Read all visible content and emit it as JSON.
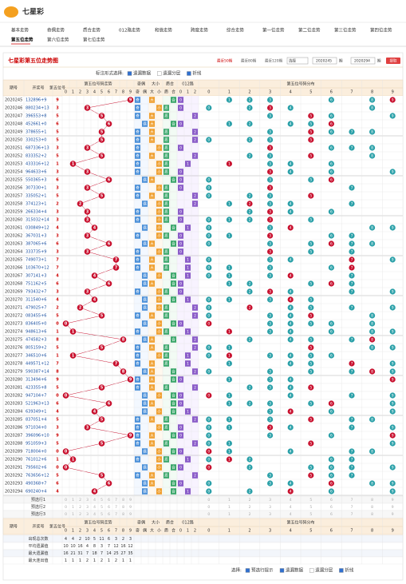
{
  "header": {
    "logo": "七星彩",
    "nav": [
      "基本走势",
      "奇偶走势",
      "质合走势",
      "012路走势",
      "和值走势",
      "跨度走势",
      "综合走势",
      "第一位走势",
      "第二位走势",
      "第三位走势",
      "第四位走势",
      "第五位走势",
      "第六位走势",
      "第七位走势"
    ],
    "active": 11
  },
  "title": "七星彩第五位走势图",
  "controls": {
    "recent": [
      "最近50期",
      "最近80期",
      "最近120期"
    ],
    "select": "选择",
    "from": "2020245",
    "qi": "期",
    "to": "2020294",
    "submit": "提取"
  },
  "options": {
    "label": "标注形式选择:",
    "items": [
      {
        "text": "遗漏数据",
        "checked": true
      },
      {
        "text": "遗漏分层",
        "checked": false
      },
      {
        "text": "折线",
        "checked": true
      }
    ]
  },
  "table": {
    "columns": {
      "period": "期号",
      "number": "开奖号",
      "digit": "第五位号",
      "trend": "第五位号码走势",
      "digits": [
        "0",
        "1",
        "2",
        "3",
        "4",
        "5",
        "6",
        "7",
        "8",
        "9"
      ],
      "parity": {
        "title": "奇偶",
        "labels": [
          "奇",
          "偶"
        ]
      },
      "size": {
        "title": "大小",
        "labels": [
          "大",
          "小"
        ]
      },
      "prime": {
        "title": "质合",
        "labels": [
          "质",
          "合"
        ]
      },
      "route": {
        "title": "012路",
        "labels": [
          "0",
          "1",
          "2"
        ]
      },
      "dist": "第五位号码分布"
    },
    "rows": [
      [
        "2020245",
        "132896+9",
        9
      ],
      [
        "2020246",
        "880234+13",
        3
      ],
      [
        "2020247",
        "396553+8",
        5
      ],
      [
        "2020248",
        "452661+0",
        6
      ],
      [
        "2020249",
        "378655+1",
        5
      ],
      [
        "2020250",
        "330253+0",
        5
      ],
      [
        "2020251",
        "687336+13",
        3
      ],
      [
        "2020252",
        "833352+2",
        5
      ],
      [
        "2020253",
        "433316+12",
        1
      ],
      [
        "2020254",
        "964633+6",
        3
      ],
      [
        "2020255",
        "550365+3",
        6
      ],
      [
        "2020256",
        "307330+1",
        3
      ],
      [
        "2020257",
        "335052+1",
        5
      ],
      [
        "2020258",
        "374123+1",
        2
      ],
      [
        "2020259",
        "266334+4",
        3
      ],
      [
        "2020260",
        "315032+14",
        3
      ],
      [
        "2020261",
        "030849+12",
        4
      ],
      [
        "2020262",
        "367031+3",
        3
      ],
      [
        "2020263",
        "387065+6",
        6
      ],
      [
        "2020264",
        "333735+9",
        3
      ],
      [
        "2020265",
        "749073+1",
        7
      ],
      [
        "2020266",
        "103670+12",
        7
      ],
      [
        "2020267",
        "307141+3",
        4
      ],
      [
        "2020268",
        "751162+5",
        6
      ],
      [
        "2020269",
        "793432+7",
        3
      ],
      [
        "2020270",
        "311540+6",
        4
      ],
      [
        "2020271",
        "479025+7",
        2
      ],
      [
        "2020272",
        "083455+6",
        5
      ],
      [
        "2020273",
        "836405+0",
        0
      ],
      [
        "2020274",
        "948613+6",
        1
      ],
      [
        "2020275",
        "474582+3",
        8
      ],
      [
        "2020276",
        "805159+2",
        5
      ],
      [
        "2020277",
        "346510+6",
        1
      ],
      [
        "2020278",
        "449571+12",
        7
      ],
      [
        "2020279",
        "590387+14",
        8
      ],
      [
        "2020280",
        "313494+6",
        9
      ],
      [
        "2020281",
        "423355+8",
        5
      ],
      [
        "2020282",
        "947104+7",
        0
      ],
      [
        "2020283",
        "521963+13",
        6
      ],
      [
        "2020284",
        "639349+1",
        4
      ],
      [
        "2020285",
        "837051+4",
        5
      ],
      [
        "2020286",
        "971034+0",
        3
      ],
      [
        "2020287",
        "396096+10",
        9
      ],
      [
        "2020288",
        "951059+3",
        5
      ],
      [
        "2020289",
        "718004+0",
        0
      ],
      [
        "2020290",
        "761012+6",
        1
      ],
      [
        "2020291",
        "795602+6",
        0
      ],
      [
        "2020292",
        "763656+12",
        5
      ],
      [
        "2020293",
        "490368+7",
        6
      ],
      [
        "2020294",
        "690240+4",
        4
      ]
    ],
    "preselect": [
      "预选行1",
      "预选行2",
      "预选行3"
    ],
    "stats": {
      "labels": [
        "出现总次数",
        "平均遗漏值",
        "最大遗漏值",
        "最大连出值"
      ],
      "values": [
        [
          4,
          4,
          2,
          10,
          5,
          11,
          6,
          3,
          2,
          3
        ],
        [
          10,
          10,
          16,
          4,
          8,
          3,
          7,
          12,
          16,
          12
        ],
        [
          16,
          21,
          31,
          7,
          18,
          7,
          14,
          25,
          27,
          35
        ],
        [
          1,
          1,
          1,
          2,
          1,
          2,
          1,
          2,
          1,
          1
        ]
      ]
    }
  },
  "footer": {
    "label": "选择:",
    "items": [
      {
        "text": "预选行提示",
        "checked": true
      },
      {
        "text": "遗漏数据",
        "checked": true
      },
      {
        "text": "遗漏分层",
        "checked": false
      },
      {
        "text": "折线",
        "checked": true
      }
    ]
  }
}
